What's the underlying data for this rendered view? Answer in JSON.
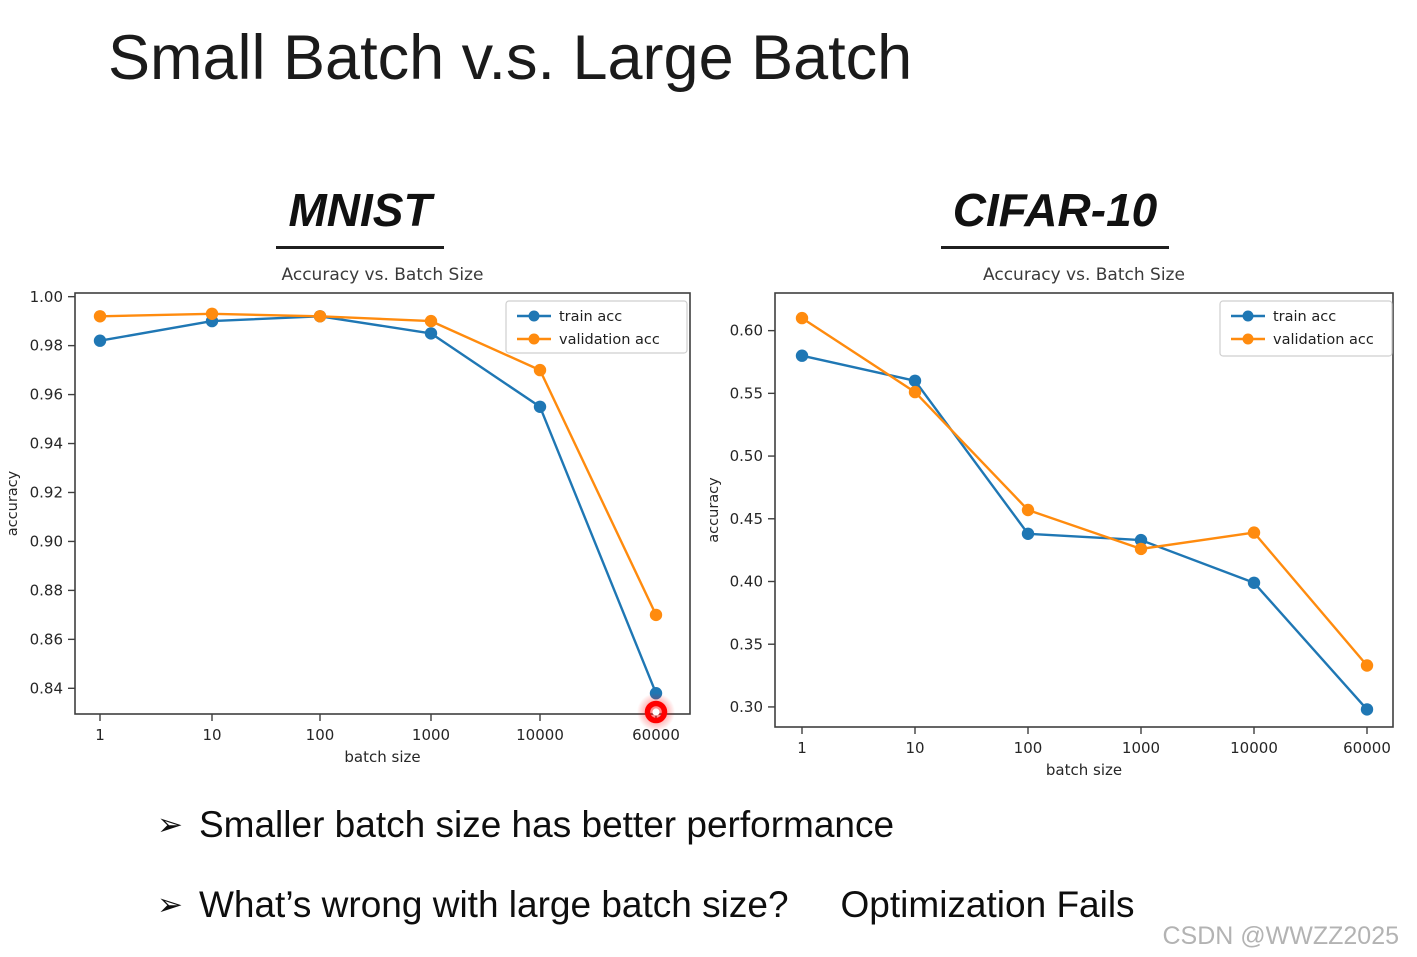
{
  "slide": {
    "title": "Small Batch v.s. Large Batch",
    "watermark": "CSDN @WWZZ2025",
    "bullet_marker": "➢",
    "bullets": [
      {
        "text": "Smaller batch size has better performance"
      },
      {
        "text": "What’s wrong with large batch size?",
        "answer": "Optimization Fails"
      }
    ]
  },
  "colors": {
    "train": "#1f77b4",
    "validation": "#ff8b0e",
    "laser": "#ff0000",
    "spine": "#3f3f3f",
    "tick_label": "#262626",
    "chart_title": "#3a3a3a"
  },
  "chart_data": [
    {
      "id": "mnist",
      "heading": "MNIST",
      "type": "line",
      "title": "Accuracy vs. Batch Size",
      "xlabel": "batch size",
      "ylabel": "accuracy",
      "x_scale": "log",
      "categories": [
        "1",
        "10",
        "100",
        "1000",
        "10000",
        "60000"
      ],
      "yticks": [
        1.0,
        0.98,
        0.96,
        0.94,
        0.92,
        0.9,
        0.88,
        0.86,
        0.84
      ],
      "ylim": [
        0.8295,
        1.0015
      ],
      "grid": false,
      "legend_position": "upper right",
      "series": [
        {
          "name": "train acc",
          "color_key": "train",
          "values": [
            0.982,
            0.99,
            0.992,
            0.985,
            0.955,
            0.838
          ]
        },
        {
          "name": "validation acc",
          "color_key": "validation",
          "values": [
            0.992,
            0.993,
            0.992,
            0.99,
            0.97,
            0.87
          ]
        }
      ],
      "annotation": {
        "type": "laser-pointer-dot",
        "x_index": 5,
        "note": "red highlight at batch size 60000 on x-axis"
      }
    },
    {
      "id": "cifar10",
      "heading": "CIFAR-10",
      "type": "line",
      "title": "Accuracy vs. Batch Size",
      "xlabel": "batch size",
      "ylabel": "accuracy",
      "x_scale": "log",
      "categories": [
        "1",
        "10",
        "100",
        "1000",
        "10000",
        "60000"
      ],
      "yticks": [
        0.6,
        0.55,
        0.5,
        0.45,
        0.4,
        0.35,
        0.3
      ],
      "ylim": [
        0.284,
        0.63
      ],
      "grid": false,
      "legend_position": "upper right",
      "series": [
        {
          "name": "train acc",
          "color_key": "train",
          "values": [
            0.58,
            0.56,
            0.438,
            0.433,
            0.399,
            0.298
          ]
        },
        {
          "name": "validation acc",
          "color_key": "validation",
          "values": [
            0.61,
            0.551,
            0.457,
            0.426,
            0.439,
            0.333
          ]
        }
      ]
    }
  ]
}
